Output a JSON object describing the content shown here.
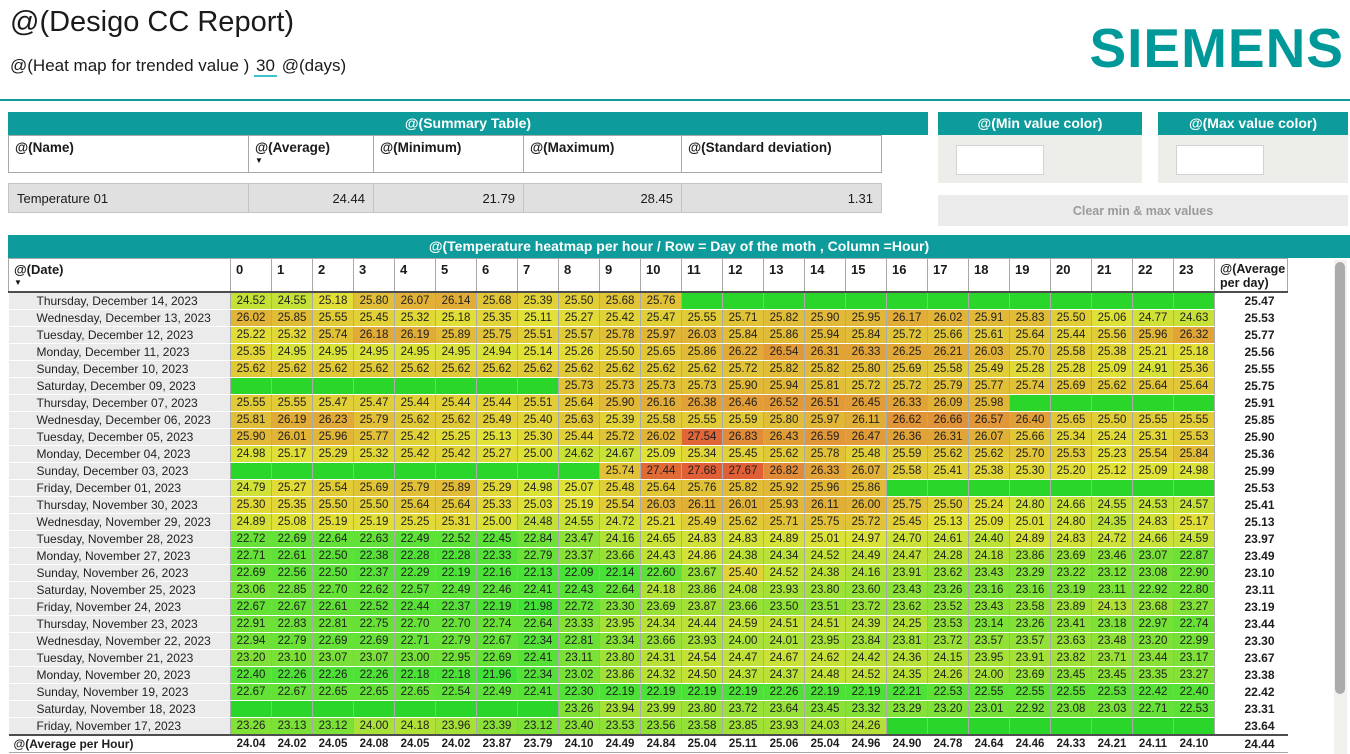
{
  "header": {
    "title": "@(Desigo CC Report)",
    "subtitle_prefix": "@(Heat map for trended value )",
    "days_value": "30",
    "subtitle_suffix": "@(days)",
    "logo": "SIEMENS"
  },
  "icons": {
    "sort_desc": "▼"
  },
  "colors": {
    "teal": "#0d9b9b",
    "logo_teal": "#009999",
    "empty_cell_green": "hsl(120,68%,50%)"
  },
  "summary": {
    "title": "@(Summary Table)",
    "columns": [
      "@(Name)",
      "@(Average)",
      "@(Minimum)",
      "@(Maximum)",
      "@(Standard deviation)"
    ],
    "rows": [
      {
        "name": "Temperature 01",
        "average": "24.44",
        "minimum": "21.79",
        "maximum": "28.45",
        "std": "1.31"
      }
    ]
  },
  "min_color_card": {
    "title": "@(Min value color)",
    "input_value": ""
  },
  "max_color_card": {
    "title": "@(Max value color)",
    "input_value": ""
  },
  "clear_button_label": "Clear min & max values",
  "heatmap": {
    "title": "@(Temperature heatmap per hour / Row = Day of the moth , Column =Hour)",
    "date_column_header": "@(Date)",
    "hour_headers": [
      "0",
      "1",
      "2",
      "3",
      "4",
      "5",
      "6",
      "7",
      "8",
      "9",
      "10",
      "11",
      "12",
      "13",
      "14",
      "15",
      "16",
      "17",
      "18",
      "19",
      "20",
      "21",
      "22",
      "23"
    ],
    "average_column_header": "@(Average per day)",
    "average_row_label": "@(Average per Hour)",
    "scale_min": 21.79,
    "scale_max": 28.45,
    "rows": [
      {
        "date": "Thursday, December 14, 2023",
        "values": [
          "24.52",
          "24.55",
          "25.18",
          "25.80",
          "26.07",
          "26.14",
          "25.68",
          "25.39",
          "25.50",
          "25.68",
          "25.76",
          null,
          null,
          null,
          null,
          null,
          null,
          null,
          null,
          null,
          null,
          null,
          null,
          null
        ],
        "average": "25.47"
      },
      {
        "date": "Wednesday, December 13, 2023",
        "values": [
          "26.02",
          "25.85",
          "25.55",
          "25.45",
          "25.32",
          "25.18",
          "25.35",
          "25.11",
          "25.27",
          "25.42",
          "25.47",
          "25.55",
          "25.71",
          "25.82",
          "25.90",
          "25.95",
          "26.17",
          "26.02",
          "25.91",
          "25.83",
          "25.50",
          "25.06",
          "24.77",
          "24.63"
        ],
        "average": "25.53"
      },
      {
        "date": "Tuesday, December 12, 2023",
        "values": [
          "25.22",
          "25.32",
          "25.74",
          "26.18",
          "26.19",
          "25.89",
          "25.75",
          "25.51",
          "25.57",
          "25.78",
          "25.97",
          "26.03",
          "25.84",
          "25.86",
          "25.94",
          "25.84",
          "25.72",
          "25.66",
          "25.61",
          "25.64",
          "25.44",
          "25.56",
          "25.96",
          "26.32"
        ],
        "average": "25.77"
      },
      {
        "date": "Monday, December 11, 2023",
        "values": [
          "25.35",
          "24.95",
          "24.95",
          "24.95",
          "24.95",
          "24.95",
          "24.94",
          "25.14",
          "25.26",
          "25.50",
          "25.65",
          "25.86",
          "26.22",
          "26.54",
          "26.31",
          "26.33",
          "26.25",
          "26.21",
          "26.03",
          "25.70",
          "25.58",
          "25.38",
          "25.21",
          "25.18"
        ],
        "average": "25.56"
      },
      {
        "date": "Sunday, December 10, 2023",
        "values": [
          "25.62",
          "25.62",
          "25.62",
          "25.62",
          "25.62",
          "25.62",
          "25.62",
          "25.62",
          "25.62",
          "25.62",
          "25.62",
          "25.62",
          "25.72",
          "25.82",
          "25.82",
          "25.80",
          "25.69",
          "25.58",
          "25.49",
          "25.28",
          "25.28",
          "25.09",
          "24.91",
          "25.36"
        ],
        "average": "25.55"
      },
      {
        "date": "Saturday, December 09, 2023",
        "values": [
          null,
          null,
          null,
          null,
          null,
          null,
          null,
          null,
          "25.73",
          "25.73",
          "25.73",
          "25.73",
          "25.90",
          "25.94",
          "25.81",
          "25.72",
          "25.72",
          "25.79",
          "25.77",
          "25.74",
          "25.69",
          "25.62",
          "25.64",
          "25.64"
        ],
        "average": "25.75"
      },
      {
        "date": "Thursday, December 07, 2023",
        "values": [
          "25.55",
          "25.55",
          "25.47",
          "25.47",
          "25.44",
          "25.44",
          "25.44",
          "25.51",
          "25.64",
          "25.90",
          "26.16",
          "26.38",
          "26.46",
          "26.52",
          "26.51",
          "26.45",
          "26.33",
          "26.09",
          "25.98",
          null,
          null,
          null,
          null,
          null
        ],
        "average": "25.91"
      },
      {
        "date": "Wednesday, December 06, 2023",
        "values": [
          "25.81",
          "26.19",
          "26.23",
          "25.79",
          "25.62",
          "25.62",
          "25.49",
          "25.40",
          "25.63",
          "25.39",
          "25.58",
          "25.55",
          "25.59",
          "25.80",
          "25.97",
          "26.11",
          "26.62",
          "26.66",
          "26.57",
          "26.40",
          "25.65",
          "25.50",
          "25.55",
          "25.55"
        ],
        "average": "25.85"
      },
      {
        "date": "Tuesday, December 05, 2023",
        "values": [
          "25.90",
          "26.01",
          "25.96",
          "25.77",
          "25.42",
          "25.25",
          "25.13",
          "25.30",
          "25.44",
          "25.72",
          "26.02",
          "27.54",
          "26.83",
          "26.43",
          "26.59",
          "26.47",
          "26.36",
          "26.31",
          "26.07",
          "25.66",
          "25.34",
          "25.24",
          "25.31",
          "25.53"
        ],
        "average": "25.90"
      },
      {
        "date": "Monday, December 04, 2023",
        "values": [
          "24.98",
          "25.17",
          "25.29",
          "25.32",
          "25.42",
          "25.42",
          "25.27",
          "25.00",
          "24.62",
          "24.67",
          "25.09",
          "25.34",
          "25.45",
          "25.62",
          "25.78",
          "25.48",
          "25.59",
          "25.62",
          "25.62",
          "25.70",
          "25.53",
          "25.23",
          "25.54",
          "25.84"
        ],
        "average": "25.36"
      },
      {
        "date": "Sunday, December 03, 2023",
        "values": [
          null,
          null,
          null,
          null,
          null,
          null,
          null,
          null,
          null,
          "25.74",
          "27.44",
          "27.68",
          "27.67",
          "26.82",
          "26.33",
          "26.07",
          "25.58",
          "25.41",
          "25.38",
          "25.30",
          "25.20",
          "25.12",
          "25.09",
          "24.98"
        ],
        "average": "25.99"
      },
      {
        "date": "Friday, December 01, 2023",
        "values": [
          "24.79",
          "25.27",
          "25.54",
          "25.69",
          "25.79",
          "25.89",
          "25.29",
          "24.98",
          "25.07",
          "25.48",
          "25.64",
          "25.76",
          "25.82",
          "25.92",
          "25.96",
          "25.86",
          null,
          null,
          null,
          null,
          null,
          null,
          null,
          null
        ],
        "average": "25.53"
      },
      {
        "date": "Thursday, November 30, 2023",
        "values": [
          "25.30",
          "25.35",
          "25.50",
          "25.50",
          "25.64",
          "25.64",
          "25.33",
          "25.03",
          "25.19",
          "25.54",
          "26.03",
          "26.11",
          "26.01",
          "25.93",
          "26.11",
          "26.00",
          "25.75",
          "25.50",
          "25.24",
          "24.80",
          "24.66",
          "24.55",
          "24.53",
          "24.57"
        ],
        "average": "25.41"
      },
      {
        "date": "Wednesday, November 29, 2023",
        "values": [
          "24.89",
          "25.08",
          "25.19",
          "25.19",
          "25.25",
          "25.31",
          "25.00",
          "24.48",
          "24.55",
          "24.72",
          "25.21",
          "25.49",
          "25.62",
          "25.71",
          "25.75",
          "25.72",
          "25.45",
          "25.13",
          "25.09",
          "25.01",
          "24.80",
          "24.35",
          "24.83",
          "25.17"
        ],
        "average": "25.13"
      },
      {
        "date": "Tuesday, November 28, 2023",
        "values": [
          "22.72",
          "22.69",
          "22.64",
          "22.63",
          "22.49",
          "22.52",
          "22.45",
          "22.84",
          "23.47",
          "24.16",
          "24.65",
          "24.83",
          "24.83",
          "24.89",
          "25.01",
          "24.97",
          "24.70",
          "24.61",
          "24.40",
          "24.89",
          "24.83",
          "24.72",
          "24.66",
          "24.59"
        ],
        "average": "23.97"
      },
      {
        "date": "Monday, November 27, 2023",
        "values": [
          "22.71",
          "22.61",
          "22.50",
          "22.38",
          "22.28",
          "22.28",
          "22.33",
          "22.79",
          "23.37",
          "23.66",
          "24.43",
          "24.86",
          "24.38",
          "24.34",
          "24.52",
          "24.49",
          "24.47",
          "24.28",
          "24.18",
          "23.86",
          "23.69",
          "23.46",
          "23.07",
          "22.87"
        ],
        "average": "23.49"
      },
      {
        "date": "Sunday, November 26, 2023",
        "values": [
          "22.69",
          "22.56",
          "22.50",
          "22.37",
          "22.29",
          "22.19",
          "22.16",
          "22.13",
          "22.09",
          "22.14",
          "22.60",
          "23.67",
          "25.40",
          "24.52",
          "24.38",
          "24.16",
          "23.91",
          "23.62",
          "23.43",
          "23.29",
          "23.22",
          "23.12",
          "23.08",
          "22.90"
        ],
        "average": "23.10"
      },
      {
        "date": "Saturday, November 25, 2023",
        "values": [
          "23.06",
          "22.85",
          "22.70",
          "22.62",
          "22.57",
          "22.49",
          "22.46",
          "22.41",
          "22.43",
          "22.64",
          "24.18",
          "23.86",
          "24.08",
          "23.93",
          "23.80",
          "23.60",
          "23.43",
          "23.26",
          "23.16",
          "23.16",
          "23.19",
          "23.11",
          "22.92",
          "22.80"
        ],
        "average": "23.11"
      },
      {
        "date": "Friday, November 24, 2023",
        "values": [
          "22.67",
          "22.67",
          "22.61",
          "22.52",
          "22.44",
          "22.37",
          "22.19",
          "21.98",
          "22.72",
          "23.30",
          "23.69",
          "23.87",
          "23.66",
          "23.50",
          "23.51",
          "23.72",
          "23.62",
          "23.52",
          "23.43",
          "23.58",
          "23.89",
          "24.13",
          "23.68",
          "23.27"
        ],
        "average": "23.19"
      },
      {
        "date": "Thursday, November 23, 2023",
        "values": [
          "22.91",
          "22.83",
          "22.81",
          "22.75",
          "22.70",
          "22.70",
          "22.74",
          "22.64",
          "23.33",
          "23.95",
          "24.34",
          "24.44",
          "24.59",
          "24.51",
          "24.51",
          "24.39",
          "24.25",
          "23.53",
          "23.14",
          "23.26",
          "23.41",
          "23.18",
          "22.97",
          "22.74"
        ],
        "average": "23.44"
      },
      {
        "date": "Wednesday, November 22, 2023",
        "values": [
          "22.94",
          "22.79",
          "22.69",
          "22.69",
          "22.71",
          "22.79",
          "22.67",
          "22.34",
          "22.81",
          "23.34",
          "23.66",
          "23.93",
          "24.00",
          "24.01",
          "23.95",
          "23.84",
          "23.81",
          "23.72",
          "23.57",
          "23.57",
          "23.63",
          "23.48",
          "23.20",
          "22.99"
        ],
        "average": "23.30"
      },
      {
        "date": "Tuesday, November 21, 2023",
        "values": [
          "23.20",
          "23.10",
          "23.07",
          "23.07",
          "23.00",
          "22.95",
          "22.69",
          "22.41",
          "23.11",
          "23.80",
          "24.31",
          "24.54",
          "24.47",
          "24.67",
          "24.62",
          "24.42",
          "24.36",
          "24.15",
          "23.95",
          "23.91",
          "23.82",
          "23.71",
          "23.44",
          "23.17"
        ],
        "average": "23.67"
      },
      {
        "date": "Monday, November 20, 2023",
        "values": [
          "22.40",
          "22.26",
          "22.26",
          "22.26",
          "22.18",
          "22.18",
          "21.96",
          "22.34",
          "23.02",
          "23.86",
          "24.32",
          "24.50",
          "24.37",
          "24.37",
          "24.48",
          "24.52",
          "24.35",
          "24.26",
          "24.00",
          "23.69",
          "23.45",
          "23.45",
          "23.35",
          "23.27"
        ],
        "average": "23.38"
      },
      {
        "date": "Sunday, November 19, 2023",
        "values": [
          "22.67",
          "22.67",
          "22.65",
          "22.65",
          "22.65",
          "22.54",
          "22.49",
          "22.41",
          "22.30",
          "22.19",
          "22.19",
          "22.19",
          "22.19",
          "22.26",
          "22.19",
          "22.19",
          "22.21",
          "22.53",
          "22.55",
          "22.55",
          "22.55",
          "22.53",
          "22.42",
          "22.40"
        ],
        "average": "22.42"
      },
      {
        "date": "Saturday, November 18, 2023",
        "values": [
          null,
          null,
          null,
          null,
          null,
          null,
          null,
          null,
          "23.26",
          "23.94",
          "23.99",
          "23.80",
          "23.72",
          "23.64",
          "23.45",
          "23.32",
          "23.29",
          "23.20",
          "23.01",
          "22.92",
          "23.08",
          "23.03",
          "22.71",
          "22.53"
        ],
        "average": "23.31"
      },
      {
        "date": "Friday, November 17, 2023",
        "values": [
          "23.26",
          "23.13",
          "23.12",
          "24.00",
          "24.18",
          "23.96",
          "23.39",
          "23.12",
          "23.40",
          "23.53",
          "23.56",
          "23.58",
          "23.85",
          "23.93",
          "24.03",
          "24.26",
          null,
          null,
          null,
          null,
          null,
          null,
          null,
          null
        ],
        "average": "23.64"
      }
    ],
    "average_per_hour": {
      "values": [
        "24.04",
        "24.02",
        "24.05",
        "24.08",
        "24.05",
        "24.02",
        "23.87",
        "23.79",
        "24.10",
        "24.49",
        "24.84",
        "25.04",
        "25.11",
        "25.06",
        "25.04",
        "24.96",
        "24.90",
        "24.78",
        "24.64",
        "24.46",
        "24.33",
        "24.21",
        "24.11",
        "24.10"
      ],
      "average": "24.44"
    }
  }
}
